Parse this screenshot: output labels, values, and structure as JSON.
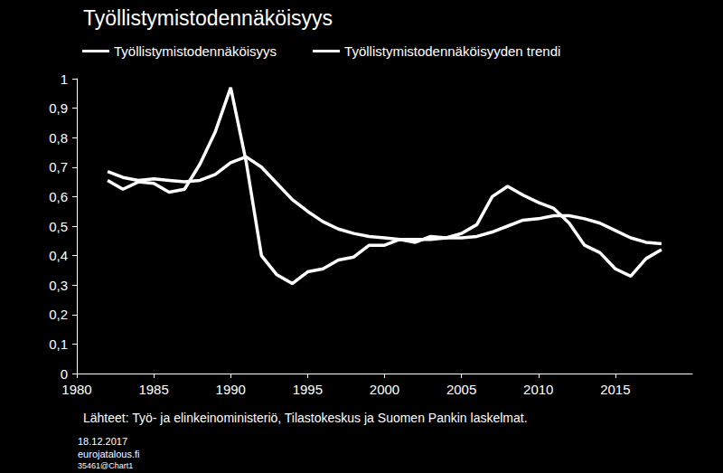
{
  "chart_data": {
    "type": "line",
    "title": "Työllistymistodennäköisyys",
    "source": "Lähteet: Työ- ja elinkeinoministeriö, Tilastokeskus ja Suomen Pankin laskelmat.",
    "notes": [
      "18.12.2017",
      "eurojatalous.fi",
      "35461@Chart1"
    ],
    "x": [
      1982,
      1983,
      1984,
      1985,
      1986,
      1987,
      1988,
      1989,
      1990,
      1991,
      1992,
      1993,
      1994,
      1995,
      1996,
      1997,
      1998,
      1999,
      2000,
      2001,
      2002,
      2003,
      2004,
      2005,
      2006,
      2007,
      2008,
      2009,
      2010,
      2011,
      2012,
      2013,
      2014,
      2015,
      2016,
      2017,
      2018
    ],
    "series": [
      {
        "name": "Työllistymistodennäköisyys",
        "color": "#ffffff",
        "line_style": "solid",
        "values": [
          0.655,
          0.625,
          0.65,
          0.645,
          0.615,
          0.625,
          0.71,
          0.82,
          0.97,
          0.72,
          0.4,
          0.335,
          0.305,
          0.345,
          0.355,
          0.385,
          0.395,
          0.435,
          0.435,
          0.455,
          0.445,
          0.465,
          0.46,
          0.475,
          0.505,
          0.6,
          0.635,
          0.605,
          0.58,
          0.56,
          0.51,
          0.435,
          0.41,
          0.355,
          0.33,
          0.39,
          0.42
        ]
      },
      {
        "name": "Työllistymistodennäköisyyden trendi",
        "color": "#ffffff",
        "line_style": "solid",
        "values": [
          0.685,
          0.665,
          0.655,
          0.66,
          0.655,
          0.65,
          0.655,
          0.675,
          0.715,
          0.735,
          0.7,
          0.645,
          0.59,
          0.55,
          0.515,
          0.49,
          0.475,
          0.465,
          0.46,
          0.455,
          0.455,
          0.455,
          0.46,
          0.46,
          0.465,
          0.48,
          0.5,
          0.52,
          0.525,
          0.535,
          0.535,
          0.525,
          0.51,
          0.485,
          0.46,
          0.445,
          0.44
        ]
      }
    ],
    "xlim": [
      1980,
      2020
    ],
    "xticks": [
      1980,
      1985,
      1990,
      1995,
      2000,
      2005,
      2010,
      2015
    ],
    "ylim": [
      0,
      1
    ],
    "yticks": [
      0,
      {
        "value": 0.1,
        "label": "0,1"
      },
      {
        "value": 0.2,
        "label": "0,2"
      },
      {
        "value": 0.3,
        "label": "0,3"
      },
      {
        "value": 0.4,
        "label": "0,4"
      },
      {
        "value": 0.5,
        "label": "0,5"
      },
      {
        "value": 0.6,
        "label": "0,6"
      },
      {
        "value": 0.7,
        "label": "0,7"
      },
      {
        "value": 0.8,
        "label": "0,8"
      },
      {
        "value": 0.9,
        "label": "0,9"
      },
      1
    ],
    "grid": false,
    "legend": "top"
  }
}
